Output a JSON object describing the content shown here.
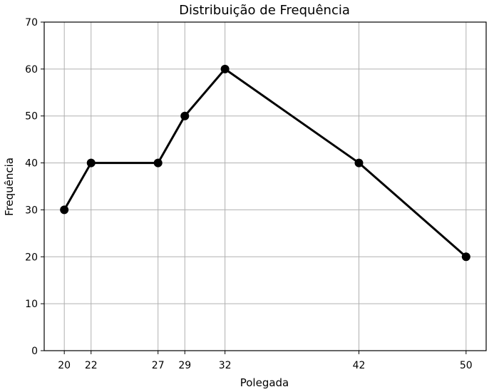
{
  "chart_data": {
    "type": "line",
    "title": "Distribuição de Frequência",
    "xlabel": "Polegada",
    "ylabel": "Frequência",
    "x": [
      20,
      22,
      27,
      29,
      32,
      42,
      50
    ],
    "series": [
      {
        "values": [
          30,
          40,
          40,
          50,
          60,
          40,
          20
        ]
      }
    ],
    "xticks": [
      20,
      22,
      27,
      29,
      32,
      42,
      50
    ],
    "yticks": [
      0,
      10,
      20,
      30,
      40,
      50,
      60,
      70
    ],
    "xlim": [
      18.5,
      51.5
    ],
    "ylim": [
      0,
      70
    ],
    "grid": true,
    "line_color": "#000000",
    "marker": "circle"
  }
}
